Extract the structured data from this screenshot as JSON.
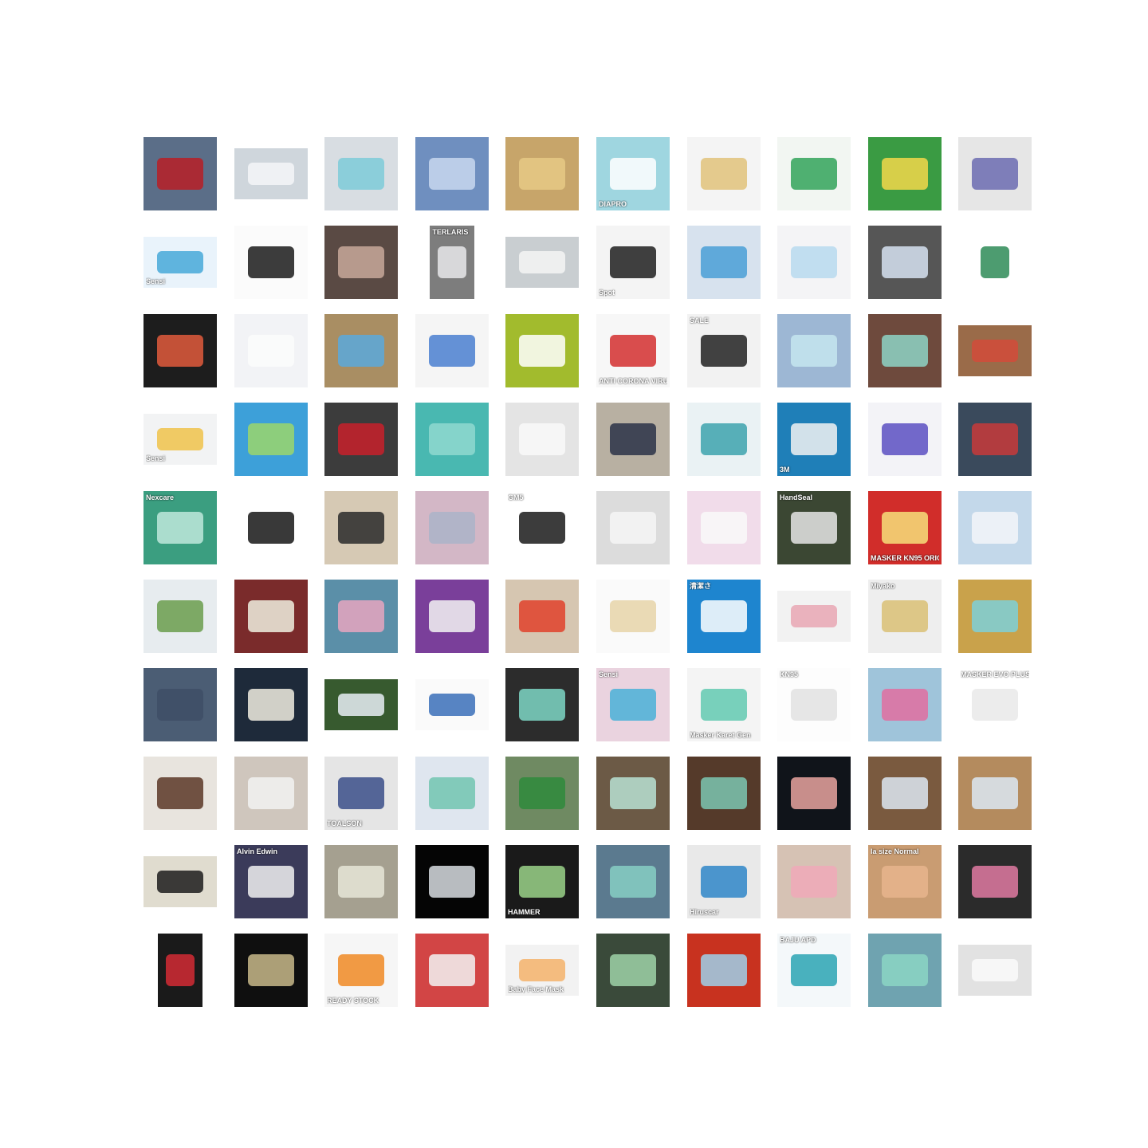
{
  "grid": {
    "rows": 10,
    "cols": 10,
    "tiles": [
      {
        "bg": "#5b6e88",
        "fg": "#b81f26",
        "shape": "tall"
      },
      {
        "bg": "#cfd6dc",
        "fg": "#f4f6f8",
        "shape": "wide"
      },
      {
        "bg": "#d8dde2",
        "fg": "#7ecbd8",
        "shape": "square"
      },
      {
        "bg": "#6f8fbf",
        "fg": "#c9d8ee",
        "shape": "square"
      },
      {
        "bg": "#c7a56a",
        "fg": "#e6c985",
        "shape": "square"
      },
      {
        "bg": "#9fd6e0",
        "fg": "#ffffff",
        "shape": "square",
        "label": "DIAPRO"
      },
      {
        "bg": "#f4f4f4",
        "fg": "#e0c27a",
        "shape": "square"
      },
      {
        "bg": "#f2f6f2",
        "fg": "#33a35a",
        "shape": "square"
      },
      {
        "bg": "#3a9b43",
        "fg": "#f3d84a",
        "shape": "square"
      },
      {
        "bg": "#e6e6e6",
        "fg": "#6b6bb0",
        "shape": "square"
      },
      {
        "bg": "#e9f3fb",
        "fg": "#47a8d8",
        "shape": "wide",
        "label": "Sensi"
      },
      {
        "bg": "#fbfbfb",
        "fg": "#1a1a1a",
        "shape": "square"
      },
      {
        "bg": "#5a4a44",
        "fg": "#c8a89a",
        "shape": "square"
      },
      {
        "bg": "#7d7d7d",
        "fg": "#e7e7ea",
        "shape": "narrow",
        "label": "TERLARIS",
        "label_top": true
      },
      {
        "bg": "#c9ced1",
        "fg": "#f4f4f4",
        "shape": "wide"
      },
      {
        "bg": "#f4f4f4",
        "fg": "#1e1e1e",
        "shape": "square",
        "label": "Spot"
      },
      {
        "bg": "#d7e2ee",
        "fg": "#4a9fd6",
        "shape": "square"
      },
      {
        "bg": "#f4f4f6",
        "fg": "#b7d9ef",
        "shape": "square"
      },
      {
        "bg": "#565656",
        "fg": "#d6e2f1",
        "shape": "square"
      },
      {
        "bg": "#ffffff",
        "fg": "#2e8b57",
        "shape": "narrow"
      },
      {
        "bg": "#1d1d1d",
        "fg": "#e05a3c",
        "shape": "square"
      },
      {
        "bg": "#f2f3f6",
        "fg": "#fbfbfb",
        "shape": "square"
      },
      {
        "bg": "#a98e63",
        "fg": "#5aa9dc",
        "shape": "square"
      },
      {
        "bg": "#f5f5f5",
        "fg": "#4a7fd0",
        "shape": "square"
      },
      {
        "bg": "#a2bb2d",
        "fg": "#ffffff",
        "shape": "square"
      },
      {
        "bg": "#f7f7f7",
        "fg": "#d32f2f",
        "shape": "square",
        "label": "ANTI CORONA VIRUS"
      },
      {
        "bg": "#f2f2f2",
        "fg": "#222222",
        "shape": "square",
        "label": "SALE",
        "label_top": true
      },
      {
        "bg": "#9db7d4",
        "fg": "#c6e6ee",
        "shape": "square"
      },
      {
        "bg": "#6e4a3d",
        "fg": "#8ed3c5",
        "shape": "square"
      },
      {
        "bg": "#9a6b49",
        "fg": "#d24b3a",
        "shape": "wide"
      },
      {
        "bg": "#f2f3f4",
        "fg": "#f0c24a",
        "shape": "wide",
        "label": "Sensi"
      },
      {
        "bg": "#3da0d9",
        "fg": "#9bd66b",
        "shape": "square"
      },
      {
        "bg": "#3c3c3c",
        "fg": "#c8202a",
        "shape": "square"
      },
      {
        "bg": "#49b8b1",
        "fg": "#8fd8d0",
        "shape": "square"
      },
      {
        "bg": "#e4e4e4",
        "fg": "#f9f9f9",
        "shape": "square"
      },
      {
        "bg": "#b8b0a2",
        "fg": "#2a3348",
        "shape": "square"
      },
      {
        "bg": "#eaf2f4",
        "fg": "#3da3ad",
        "shape": "square"
      },
      {
        "bg": "#1f7fb8",
        "fg": "#f2f2f2",
        "shape": "square",
        "label": "3M"
      },
      {
        "bg": "#f3f3f7",
        "fg": "#5a4fc2",
        "shape": "square"
      },
      {
        "bg": "#3a4a5c",
        "fg": "#c83a3a",
        "shape": "square"
      },
      {
        "bg": "#3b9e80",
        "fg": "#bfe8dc",
        "shape": "square",
        "label": "Nexcare",
        "label_top": true
      },
      {
        "bg": "#ffffff",
        "fg": "#161616",
        "shape": "square"
      },
      {
        "bg": "#d6c9b4",
        "fg": "#2a2a2a",
        "shape": "square"
      },
      {
        "bg": "#d3b7c6",
        "fg": "#aab4c8",
        "shape": "square"
      },
      {
        "bg": "#ffffff",
        "fg": "#1a1a1a",
        "shape": "square",
        "label": "GM5",
        "label_top": true
      },
      {
        "bg": "#dcdcdc",
        "fg": "#f6f6f6",
        "shape": "square"
      },
      {
        "bg": "#f1dcea",
        "fg": "#f9f9f9",
        "shape": "square"
      },
      {
        "bg": "#3b4733",
        "fg": "#e6e6e6",
        "shape": "square",
        "label": "HandSeal",
        "label_top": true
      },
      {
        "bg": "#d12d2a",
        "fg": "#f7e17a",
        "shape": "square",
        "label": "MASKER KN95 ORIGINAL"
      },
      {
        "bg": "#c3d8ea",
        "fg": "#f3f6f9",
        "shape": "square"
      },
      {
        "bg": "#e7ecef",
        "fg": "#6a9e4c",
        "shape": "square"
      },
      {
        "bg": "#7a2b2b",
        "fg": "#f0f0e0",
        "shape": "square"
      },
      {
        "bg": "#5b8fa8",
        "fg": "#e8a6c0",
        "shape": "square"
      },
      {
        "bg": "#7a3f9a",
        "fg": "#f3f3f3",
        "shape": "square"
      },
      {
        "bg": "#d6c6b1",
        "fg": "#e0412c",
        "shape": "square"
      },
      {
        "bg": "#fafafa",
        "fg": "#e6d3a8",
        "shape": "square"
      },
      {
        "bg": "#1e85cf",
        "fg": "#ffffff",
        "shape": "square",
        "label": "清潔さ",
        "label_top": true
      },
      {
        "bg": "#f2f2f2",
        "fg": "#e9a7b4",
        "shape": "wide"
      },
      {
        "bg": "#eeeeee",
        "fg": "#d9c074",
        "shape": "square",
        "label": "Miyako",
        "label_top": true
      },
      {
        "bg": "#c9a24b",
        "fg": "#7ed0d8",
        "shape": "square"
      },
      {
        "bg": "#4b5d74",
        "fg": "#3e4e66",
        "shape": "square"
      },
      {
        "bg": "#1e2a3a",
        "fg": "#f1ede2",
        "shape": "square"
      },
      {
        "bg": "#375a2f",
        "fg": "#e8eef4",
        "shape": "wide"
      },
      {
        "bg": "#fafafa",
        "fg": "#3a6fb8",
        "shape": "wide"
      },
      {
        "bg": "#2c2c2c",
        "fg": "#7ed7c5",
        "shape": "square"
      },
      {
        "bg": "#ead3df",
        "fg": "#4ab0d8",
        "shape": "square",
        "label": "Sensi",
        "label_top": true
      },
      {
        "bg": "#f4f4f4",
        "fg": "#61c9b0",
        "shape": "square",
        "label": "Masker Karet Gen"
      },
      {
        "bg": "#fdfdfd",
        "fg": "#e2e2e2",
        "shape": "square",
        "label": "KN95",
        "label_top": true
      },
      {
        "bg": "#9fc4da",
        "fg": "#e06fa0",
        "shape": "square"
      },
      {
        "bg": "#ffffff",
        "fg": "#e9e9e9",
        "shape": "square",
        "label": "MASKER EVO PLUSMED",
        "label_top": true
      },
      {
        "bg": "#e8e4de",
        "fg": "#5b3727",
        "shape": "square"
      },
      {
        "bg": "#cfc6bd",
        "fg": "#f2f2f2",
        "shape": "square"
      },
      {
        "bg": "#e5e5e5",
        "fg": "#3b4f8a",
        "shape": "square",
        "label": "TOALSON"
      },
      {
        "bg": "#dfe6ef",
        "fg": "#72c4b0",
        "shape": "square"
      },
      {
        "bg": "#6f8a62",
        "fg": "#2f8a3c",
        "shape": "square"
      },
      {
        "bg": "#6c5a46",
        "fg": "#b9e2d3",
        "shape": "square"
      },
      {
        "bg": "#553a2a",
        "fg": "#7cc7b2",
        "shape": "square"
      },
      {
        "bg": "#10141a",
        "fg": "#e9a3a0",
        "shape": "square"
      },
      {
        "bg": "#7a5a3f",
        "fg": "#dde8f2",
        "shape": "square"
      },
      {
        "bg": "#b48b5e",
        "fg": "#dce8f3",
        "shape": "square"
      },
      {
        "bg": "#e0dccf",
        "fg": "#1c1c1c",
        "shape": "wide"
      },
      {
        "bg": "#3b3b5a",
        "fg": "#f1f1f1",
        "shape": "square",
        "label": "Alvin Edwin",
        "label_top": true
      },
      {
        "bg": "#a5a090",
        "fg": "#e6e6d8",
        "shape": "square"
      },
      {
        "bg": "#050505",
        "fg": "#d8dde2",
        "shape": "square"
      },
      {
        "bg": "#1a1a1a",
        "fg": "#9bd38a",
        "shape": "square",
        "label": "HAMMER"
      },
      {
        "bg": "#5b7a8f",
        "fg": "#87cfc4",
        "shape": "square"
      },
      {
        "bg": "#e9e9e9",
        "fg": "#2f86c8",
        "shape": "square",
        "label": "Hiruscar"
      },
      {
        "bg": "#d6c2b4",
        "fg": "#f0a9b9",
        "shape": "square"
      },
      {
        "bg": "#c99c72",
        "fg": "#e7b58d",
        "shape": "square",
        "label": "la size Normal",
        "label_top": true
      },
      {
        "bg": "#2b2b2b",
        "fg": "#e07aa2",
        "shape": "square"
      },
      {
        "bg": "#1a1a1a",
        "fg": "#d32c35",
        "shape": "narrow"
      },
      {
        "bg": "#0f0f0f",
        "fg": "#c8b88a",
        "shape": "square"
      },
      {
        "bg": "#f6f6f6",
        "fg": "#f08a24",
        "shape": "square",
        "label": "READY STOCK"
      },
      {
        "bg": "#d24545",
        "fg": "#f3f3f3",
        "shape": "square"
      },
      {
        "bg": "#f2f2f2",
        "fg": "#f5b36b",
        "shape": "wide",
        "label": "Baby Face Mask"
      },
      {
        "bg": "#3a4a3a",
        "fg": "#9fd2a8",
        "shape": "square"
      },
      {
        "bg": "#c8321f",
        "fg": "#9fd0ea",
        "shape": "square"
      },
      {
        "bg": "#f4f8fa",
        "fg": "#2aa4b3",
        "shape": "square",
        "label": "BAJU APD",
        "label_top": true
      },
      {
        "bg": "#6fa3b0",
        "fg": "#8cd6c4",
        "shape": "square"
      },
      {
        "bg": "#e2e2e2",
        "fg": "#fafafa",
        "shape": "wide"
      }
    ]
  }
}
